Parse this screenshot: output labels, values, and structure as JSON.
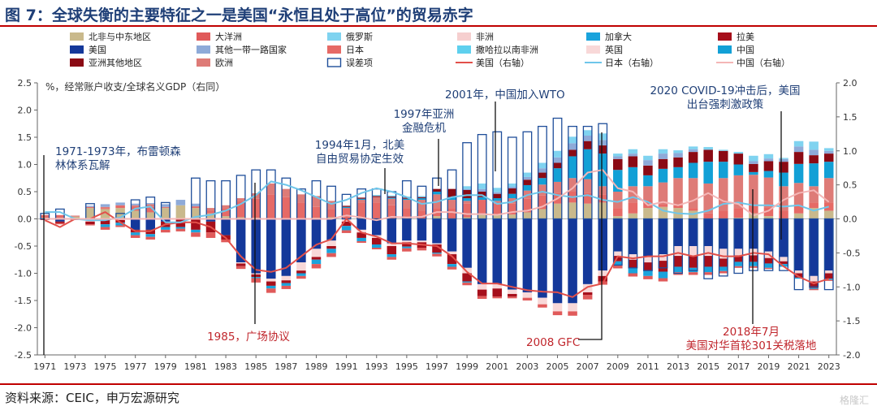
{
  "title": "图 7：全球失衡的主要特征之一是美国“永恒且处于高位”的贸易赤字",
  "source": "资料来源：CEIC，申万宏源研究",
  "watermark": "格隆汇",
  "colors": {
    "title": "#1f3f77",
    "rule": "#c00000",
    "annotation_blue": "#1f3f77",
    "annotation_red": "#c0262c"
  },
  "chart_data": {
    "type": "bar",
    "title": "全球失衡的主要特征之一是美国“永恒且处于高位”的贸易赤字",
    "ylabel": "%，经常账户收支/全球名义GDP（右同）",
    "ylim": [
      -2.5,
      2.5
    ],
    "y2lim": [
      -2.0,
      2.0
    ],
    "yticks": [
      "2.5",
      "2.0",
      "1.5",
      "1.0",
      "0.5",
      "0.0",
      "-0.5",
      "-1.0",
      "-1.5",
      "-2.0",
      "-2.5"
    ],
    "y2ticks": [
      "2.0",
      "1.5",
      "1.0",
      "0.5",
      "0.0",
      "-0.5",
      "-1.0",
      "-1.5",
      "-2.0"
    ],
    "xtick_labels": [
      "1971",
      "1973",
      "1975",
      "1977",
      "1979",
      "1981",
      "1983",
      "1985",
      "1987",
      "1989",
      "1991",
      "1993",
      "1995",
      "1997",
      "1999",
      "2001",
      "2003",
      "2005",
      "2007",
      "2009",
      "2011",
      "2013",
      "2015",
      "2017",
      "2019",
      "2021",
      "2023"
    ],
    "years": [
      1971,
      1972,
      1973,
      1974,
      1975,
      1976,
      1977,
      1978,
      1979,
      1980,
      1981,
      1982,
      1983,
      1984,
      1985,
      1986,
      1987,
      1988,
      1989,
      1990,
      1991,
      1992,
      1993,
      1994,
      1995,
      1996,
      1997,
      1998,
      1999,
      2000,
      2001,
      2002,
      2003,
      2004,
      2005,
      2006,
      2007,
      2008,
      2009,
      2010,
      2011,
      2012,
      2013,
      2014,
      2015,
      2016,
      2017,
      2018,
      2019,
      2020,
      2021,
      2022,
      2023
    ],
    "legend": [
      {
        "name": "北非与中东地区",
        "color": "#c9b98c",
        "kind": "bar"
      },
      {
        "name": "大洋洲",
        "color": "#e05a5a",
        "kind": "bar"
      },
      {
        "name": "俄罗斯",
        "color": "#7fd3f0",
        "kind": "bar"
      },
      {
        "name": "非洲",
        "color": "#f6cfcf",
        "kind": "bar"
      },
      {
        "name": "加拿大",
        "color": "#1aa3dc",
        "kind": "bar"
      },
      {
        "name": "拉美",
        "color": "#a60f1b",
        "kind": "bar"
      },
      {
        "name": "美国",
        "color": "#14389a",
        "kind": "bar"
      },
      {
        "name": "其他一带一路国家",
        "color": "#8eaad8",
        "kind": "bar"
      },
      {
        "name": "日本",
        "color": "#e66a66",
        "kind": "bar"
      },
      {
        "name": "撒哈拉以南非洲",
        "color": "#5ed0ee",
        "kind": "bar"
      },
      {
        "name": "英国",
        "color": "#f8d8d8",
        "kind": "bar"
      },
      {
        "name": "中国",
        "color": "#12a0d6",
        "kind": "bar"
      },
      {
        "name": "亚洲其他地区",
        "color": "#8b0a14",
        "kind": "bar"
      },
      {
        "name": "欧洲",
        "color": "#de7b77",
        "kind": "bar"
      },
      {
        "name": "误差项",
        "color": "#1f4e9a",
        "kind": "box"
      },
      {
        "name": "美国（右轴）",
        "color": "#e2504a",
        "kind": "line"
      },
      {
        "name": "日本（右轴）",
        "color": "#6ec6ea",
        "kind": "line"
      },
      {
        "name": "中国（右轴）",
        "color": "#f4b6b6",
        "kind": "line"
      }
    ],
    "stack_order_positive": [
      "北非与中东地区",
      "日本",
      "欧洲",
      "中国",
      "亚洲其他地区",
      "其他一带一路国家",
      "俄罗斯"
    ],
    "stack_order_negative": [
      "美国",
      "英国",
      "拉美",
      "加拿大",
      "大洋洲"
    ],
    "series": [
      {
        "name": "北非与中东地区",
        "values": [
          0.02,
          0.02,
          0.04,
          0.2,
          0.18,
          0.2,
          0.15,
          0.12,
          0.2,
          0.25,
          0.2,
          0.1,
          0.05,
          0.03,
          0.02,
          0.0,
          0.0,
          0.0,
          0.02,
          0.03,
          0.0,
          0.0,
          0.0,
          0.0,
          0.0,
          0.0,
          0.05,
          0.0,
          0.03,
          0.1,
          0.08,
          0.08,
          0.12,
          0.18,
          0.28,
          0.3,
          0.28,
          0.3,
          0.05,
          0.1,
          0.2,
          0.22,
          0.2,
          0.15,
          0.0,
          0.0,
          0.02,
          0.1,
          0.05,
          0.0,
          0.1,
          0.2,
          0.15
        ]
      },
      {
        "name": "日本",
        "values": [
          0.05,
          0.05,
          0.0,
          0.02,
          0.02,
          0.05,
          0.08,
          0.1,
          0.0,
          0.0,
          0.03,
          0.05,
          0.15,
          0.3,
          0.35,
          0.45,
          0.4,
          0.3,
          0.2,
          0.15,
          0.2,
          0.3,
          0.3,
          0.25,
          0.2,
          0.15,
          0.15,
          0.2,
          0.25,
          0.25,
          0.2,
          0.2,
          0.25,
          0.25,
          0.2,
          0.2,
          0.2,
          0.15,
          0.15,
          0.2,
          0.15,
          0.05,
          0.05,
          0.05,
          0.1,
          0.15,
          0.18,
          0.16,
          0.16,
          0.15,
          0.16,
          0.1,
          0.15
        ]
      },
      {
        "name": "欧洲",
        "values": [
          0.0,
          0.0,
          0.02,
          0.0,
          0.02,
          0.0,
          0.02,
          0.05,
          0.02,
          0.0,
          0.0,
          0.05,
          0.05,
          0.05,
          0.1,
          0.2,
          0.15,
          0.15,
          0.2,
          0.15,
          0.0,
          0.05,
          0.1,
          0.12,
          0.15,
          0.2,
          0.25,
          0.15,
          0.05,
          0.0,
          0.05,
          0.1,
          0.15,
          0.2,
          0.2,
          0.25,
          0.25,
          0.15,
          0.3,
          0.3,
          0.25,
          0.4,
          0.5,
          0.55,
          0.55,
          0.6,
          0.6,
          0.55,
          0.55,
          0.45,
          0.4,
          0.3,
          0.45
        ]
      },
      {
        "name": "中国",
        "values": [
          0.0,
          0.0,
          0.0,
          0.0,
          0.0,
          0.0,
          0.0,
          0.0,
          0.0,
          0.0,
          0.0,
          0.0,
          0.0,
          0.0,
          0.0,
          0.0,
          0.0,
          0.0,
          0.0,
          0.0,
          0.02,
          0.02,
          0.0,
          0.02,
          0.02,
          0.03,
          0.05,
          0.05,
          0.05,
          0.05,
          0.05,
          0.08,
          0.1,
          0.12,
          0.25,
          0.4,
          0.55,
          0.6,
          0.4,
          0.35,
          0.2,
          0.25,
          0.2,
          0.28,
          0.4,
          0.3,
          0.2,
          0.05,
          0.12,
          0.25,
          0.35,
          0.42,
          0.3
        ]
      },
      {
        "name": "亚洲其他地区",
        "values": [
          0.0,
          0.0,
          0.0,
          0.0,
          0.0,
          0.0,
          0.0,
          0.0,
          0.0,
          0.0,
          0.0,
          0.0,
          0.0,
          0.0,
          0.0,
          0.0,
          0.0,
          0.0,
          0.0,
          0.0,
          0.02,
          0.02,
          0.02,
          0.02,
          0.02,
          0.02,
          0.05,
          0.15,
          0.15,
          0.1,
          0.08,
          0.1,
          0.1,
          0.1,
          0.1,
          0.12,
          0.15,
          0.15,
          0.2,
          0.2,
          0.18,
          0.18,
          0.18,
          0.2,
          0.22,
          0.2,
          0.2,
          0.15,
          0.18,
          0.2,
          0.22,
          0.15,
          0.15
        ]
      },
      {
        "name": "其他一带一路国家",
        "values": [
          0.0,
          0.0,
          0.0,
          0.02,
          0.05,
          0.05,
          0.03,
          0.02,
          0.05,
          0.1,
          0.05,
          0.0,
          0.0,
          0.0,
          0.0,
          0.0,
          0.0,
          0.0,
          0.0,
          0.0,
          0.0,
          0.0,
          0.0,
          0.0,
          0.0,
          0.0,
          0.0,
          0.0,
          0.02,
          0.05,
          0.03,
          0.03,
          0.05,
          0.08,
          0.1,
          0.12,
          0.1,
          0.1,
          0.05,
          0.05,
          0.1,
          0.1,
          0.08,
          0.05,
          0.0,
          0.0,
          0.0,
          0.05,
          0.05,
          0.05,
          0.1,
          0.1,
          0.05
        ]
      },
      {
        "name": "俄罗斯",
        "values": [
          0.0,
          0.0,
          0.0,
          0.0,
          0.0,
          0.0,
          0.0,
          0.0,
          0.0,
          0.0,
          0.0,
          0.0,
          0.0,
          0.0,
          0.0,
          0.0,
          0.0,
          0.0,
          0.0,
          0.0,
          0.0,
          0.0,
          0.02,
          0.02,
          0.02,
          0.02,
          0.0,
          0.0,
          0.05,
          0.1,
          0.08,
          0.06,
          0.08,
          0.1,
          0.12,
          0.12,
          0.1,
          0.12,
          0.05,
          0.08,
          0.08,
          0.08,
          0.05,
          0.05,
          0.05,
          0.02,
          0.03,
          0.1,
          0.08,
          0.02,
          0.1,
          0.15,
          0.05
        ]
      },
      {
        "name": "美国",
        "values": [
          0.0,
          -0.05,
          0.0,
          0.0,
          0.05,
          0.0,
          -0.2,
          -0.2,
          -0.05,
          0.0,
          0.0,
          -0.05,
          -0.3,
          -0.8,
          -1.0,
          -1.1,
          -1.05,
          -0.8,
          -0.55,
          -0.4,
          0.0,
          -0.2,
          -0.3,
          -0.45,
          -0.4,
          -0.4,
          -0.45,
          -0.6,
          -0.9,
          -1.2,
          -1.2,
          -1.3,
          -1.35,
          -1.45,
          -1.55,
          -1.55,
          -1.2,
          -0.95,
          -0.6,
          -0.65,
          -0.7,
          -0.65,
          -0.5,
          -0.5,
          -0.5,
          -0.55,
          -0.55,
          -0.55,
          -0.6,
          -0.7,
          -0.95,
          -1.05,
          -0.95
        ]
      },
      {
        "name": "英国",
        "values": [
          0.0,
          0.0,
          0.0,
          -0.05,
          -0.02,
          -0.02,
          0.0,
          0.0,
          0.0,
          0.0,
          0.0,
          0.0,
          0.0,
          -0.02,
          -0.02,
          -0.05,
          -0.08,
          -0.15,
          -0.15,
          -0.1,
          -0.05,
          -0.05,
          -0.05,
          -0.05,
          -0.03,
          -0.03,
          -0.02,
          -0.05,
          -0.1,
          -0.1,
          -0.08,
          -0.08,
          -0.1,
          -0.12,
          -0.15,
          -0.15,
          -0.15,
          -0.1,
          -0.08,
          -0.1,
          -0.1,
          -0.12,
          -0.18,
          -0.18,
          -0.18,
          -0.18,
          -0.12,
          -0.12,
          -0.12,
          -0.08,
          -0.05,
          -0.1,
          -0.05
        ]
      },
      {
        "name": "拉美",
        "values": [
          -0.02,
          -0.03,
          -0.02,
          -0.05,
          -0.08,
          -0.05,
          -0.05,
          -0.08,
          -0.1,
          -0.15,
          -0.2,
          -0.2,
          -0.08,
          -0.05,
          -0.05,
          -0.08,
          -0.05,
          -0.05,
          -0.05,
          -0.05,
          -0.08,
          -0.1,
          -0.12,
          -0.15,
          -0.08,
          -0.1,
          -0.15,
          -0.18,
          -0.15,
          -0.12,
          -0.15,
          -0.05,
          0.0,
          0.0,
          0.0,
          0.0,
          -0.05,
          -0.1,
          -0.1,
          -0.15,
          -0.15,
          -0.2,
          -0.2,
          -0.22,
          -0.2,
          -0.15,
          -0.12,
          -0.12,
          -0.1,
          -0.05,
          -0.08,
          -0.12,
          -0.1
        ]
      },
      {
        "name": "加拿大",
        "values": [
          0.0,
          0.0,
          0.0,
          0.0,
          -0.05,
          -0.05,
          -0.05,
          -0.05,
          -0.05,
          -0.03,
          -0.05,
          0.0,
          0.0,
          0.0,
          -0.02,
          -0.05,
          -0.05,
          -0.05,
          -0.08,
          -0.08,
          -0.08,
          -0.06,
          -0.06,
          -0.05,
          -0.03,
          0.0,
          -0.02,
          -0.05,
          -0.02,
          0.0,
          0.0,
          0.0,
          0.0,
          0.0,
          0.0,
          0.0,
          0.0,
          0.0,
          -0.08,
          -0.1,
          -0.1,
          -0.12,
          -0.1,
          -0.08,
          -0.1,
          -0.08,
          -0.08,
          -0.08,
          -0.08,
          -0.05,
          -0.02,
          -0.02,
          -0.02
        ]
      },
      {
        "name": "大洋洲",
        "values": [
          0.0,
          -0.02,
          0.0,
          -0.02,
          -0.05,
          -0.03,
          -0.05,
          -0.05,
          -0.05,
          -0.05,
          -0.08,
          -0.1,
          -0.05,
          -0.05,
          -0.08,
          -0.08,
          -0.06,
          -0.05,
          -0.08,
          -0.07,
          -0.05,
          -0.03,
          -0.03,
          -0.05,
          -0.06,
          -0.05,
          -0.05,
          -0.05,
          -0.05,
          -0.05,
          -0.03,
          -0.03,
          -0.05,
          -0.06,
          -0.07,
          -0.08,
          -0.08,
          -0.06,
          -0.05,
          -0.06,
          -0.06,
          -0.06,
          -0.05,
          -0.05,
          -0.05,
          -0.04,
          -0.03,
          -0.03,
          -0.02,
          0.0,
          0.0,
          -0.02,
          -0.02
        ]
      }
    ],
    "residual": [
      0.1,
      0.18,
      0.0,
      0.28,
      0.0,
      0.1,
      0.35,
      0.4,
      0.3,
      0.0,
      0.75,
      0.7,
      0.7,
      0.8,
      0.9,
      0.9,
      0.75,
      0.55,
      0.7,
      0.6,
      0.45,
      0.55,
      0.55,
      0.5,
      0.7,
      0.6,
      0.75,
      0.9,
      1.4,
      1.55,
      1.6,
      1.5,
      1.6,
      1.7,
      1.85,
      1.7,
      1.7,
      1.75,
      -0.85,
      -0.9,
      -0.95,
      -0.9,
      -1.0,
      -0.95,
      -1.1,
      -1.05,
      -1.0,
      -0.95,
      -0.95,
      -0.95,
      -1.3,
      -1.25,
      -1.3
    ],
    "line_series": [
      {
        "name": "美国（右轴）",
        "axis": "right",
        "values": [
          -0.02,
          -0.12,
          0.0,
          0.0,
          0.1,
          -0.05,
          -0.18,
          -0.18,
          -0.08,
          -0.05,
          -0.05,
          -0.12,
          -0.28,
          -0.55,
          -0.75,
          -0.78,
          -0.72,
          -0.55,
          -0.38,
          -0.3,
          0.0,
          -0.2,
          -0.26,
          -0.36,
          -0.36,
          -0.38,
          -0.4,
          -0.55,
          -0.78,
          -0.95,
          -0.95,
          -1.0,
          -1.05,
          -1.07,
          -1.08,
          -1.15,
          -1.0,
          -0.95,
          -0.55,
          -0.58,
          -0.55,
          -0.55,
          -0.5,
          -0.55,
          -0.5,
          -0.55,
          -0.55,
          -0.5,
          -0.52,
          -0.7,
          -0.85,
          -0.95,
          -0.88
        ]
      },
      {
        "name": "日本（右轴）",
        "axis": "right",
        "values": [
          0.1,
          0.1,
          0.0,
          -0.02,
          -0.02,
          0.02,
          0.15,
          0.18,
          -0.05,
          -0.05,
          0.03,
          0.06,
          0.12,
          0.22,
          0.35,
          0.55,
          0.5,
          0.42,
          0.32,
          0.22,
          0.28,
          0.38,
          0.45,
          0.4,
          0.32,
          0.22,
          0.25,
          0.32,
          0.35,
          0.35,
          0.22,
          0.25,
          0.35,
          0.4,
          0.35,
          0.32,
          0.35,
          0.28,
          0.25,
          0.32,
          0.25,
          0.12,
          0.08,
          0.07,
          0.12,
          0.22,
          0.24,
          0.2,
          0.2,
          0.18,
          0.2,
          0.12,
          0.18
        ]
      },
      {
        "name": "中国（右轴）",
        "axis": "right",
        "values": [
          0.0,
          0.0,
          0.0,
          0.0,
          0.0,
          0.0,
          0.0,
          0.0,
          0.0,
          0.0,
          0.0,
          0.0,
          0.0,
          0.0,
          0.0,
          0.0,
          0.0,
          0.0,
          0.0,
          0.0,
          0.05,
          0.02,
          -0.02,
          0.03,
          0.02,
          0.03,
          0.1,
          0.1,
          0.07,
          0.07,
          0.06,
          0.1,
          0.12,
          0.18,
          0.3,
          0.45,
          0.68,
          0.72,
          0.45,
          0.4,
          0.2,
          0.25,
          0.2,
          0.27,
          0.38,
          0.26,
          0.22,
          0.05,
          0.12,
          0.28,
          0.38,
          0.42,
          0.25
        ]
      }
    ],
    "annotations": [
      {
        "id": "a1971",
        "lines": [
          "1971-1973年，布雷顿森",
          "林体系瓦解"
        ],
        "year": 1971,
        "color": "blue"
      },
      {
        "id": "a1985",
        "lines": [
          "1985，广场协议"
        ],
        "year": 1985,
        "color": "red"
      },
      {
        "id": "a1994",
        "lines": [
          "1994年1月，北美",
          "自由贸易协定生效"
        ],
        "year": 1994,
        "color": "blue"
      },
      {
        "id": "a1997",
        "lines": [
          "1997年亚洲",
          "金融危机"
        ],
        "year": 1997,
        "color": "blue"
      },
      {
        "id": "a2001",
        "lines": [
          "2001年，中国加入WTO"
        ],
        "year": 2001,
        "color": "blue"
      },
      {
        "id": "a2008",
        "lines": [
          "2008 GFC"
        ],
        "year": 2008,
        "color": "red"
      },
      {
        "id": "a2018",
        "lines": [
          "2018年7月",
          "美国对华首轮301关税落地"
        ],
        "year": 2018,
        "color": "red"
      },
      {
        "id": "a2020",
        "lines": [
          "2020 COVID-19冲击后，美国",
          "出台强刺激政策"
        ],
        "year": 2020,
        "color": "blue"
      }
    ]
  }
}
